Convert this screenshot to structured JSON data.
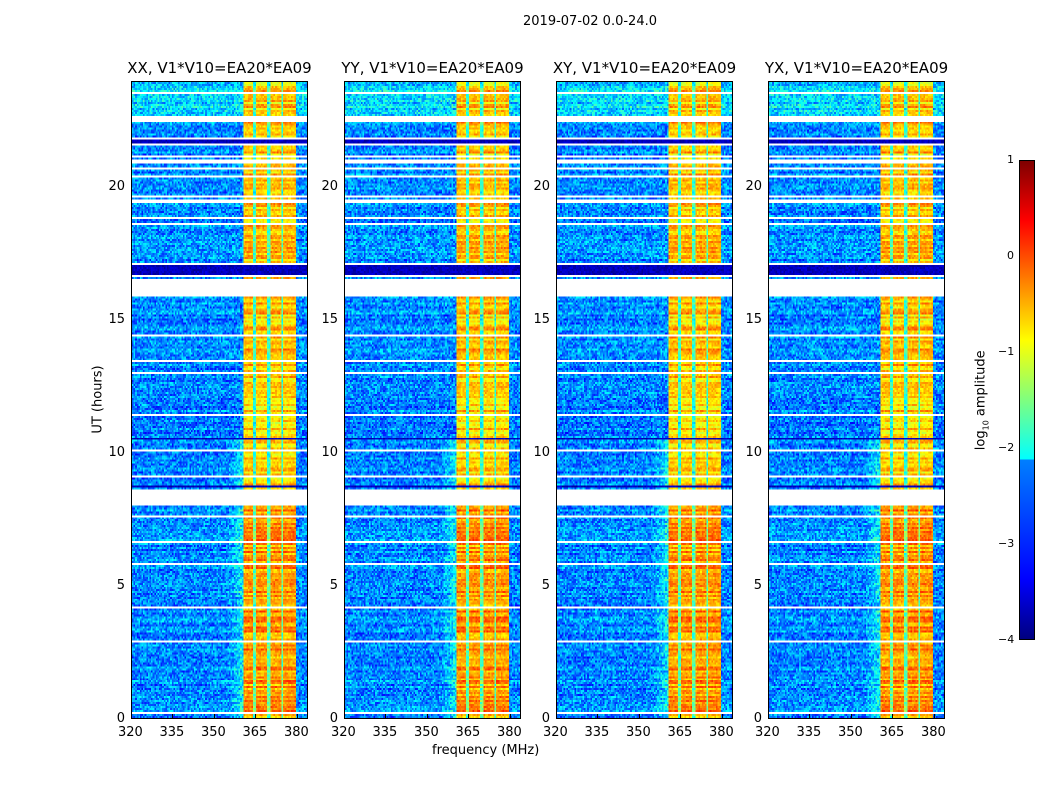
{
  "chart_data": {
    "type": "heatmap",
    "title": "2019-07-02 0.0-24.0",
    "xlabel": "frequency (MHz)",
    "ylabel": "UT (hours)",
    "xlim": [
      320,
      384
    ],
    "ylim": [
      0,
      24
    ],
    "xticks": [
      "320",
      "335",
      "350",
      "365",
      "380"
    ],
    "xtick_values": [
      320,
      335,
      350,
      365,
      380
    ],
    "yticks": [
      "0",
      "5",
      "10",
      "15",
      "20"
    ],
    "ytick_values": [
      0,
      5,
      10,
      15,
      20
    ],
    "panels": [
      {
        "title": "XX, V1*V10=EA20*EA09"
      },
      {
        "title": "YY, V1*V10=EA20*EA09"
      },
      {
        "title": "XY, V1*V10=EA20*EA09"
      },
      {
        "title": "YX, V1*V10=EA20*EA09"
      }
    ],
    "bright_band_mhz": [
      360.5,
      380
    ],
    "band_notches_mhz": [
      365,
      370,
      375
    ],
    "background_level": -2.7,
    "band_level": -0.6,
    "flagged_gaps_hours": [
      [
        8.0,
        8.6
      ],
      [
        15.9,
        16.6
      ],
      [
        22.5,
        22.7
      ],
      [
        19.4,
        19.6
      ],
      [
        20.9,
        21.1
      ]
    ],
    "dark_rows_hours": [
      [
        21.6,
        21.9
      ],
      [
        16.7,
        17.1
      ],
      [
        8.7,
        8.8
      ],
      [
        10.5,
        10.6
      ]
    ],
    "colorbar": {
      "label": "log10 amplitude",
      "colormap": "jet",
      "vmin": -4,
      "vmax": 1,
      "ticks": [
        "1",
        "0",
        "−1",
        "−2",
        "−3",
        "−4"
      ],
      "tick_values": [
        1,
        0,
        -1,
        -2,
        -3,
        -4
      ]
    }
  }
}
